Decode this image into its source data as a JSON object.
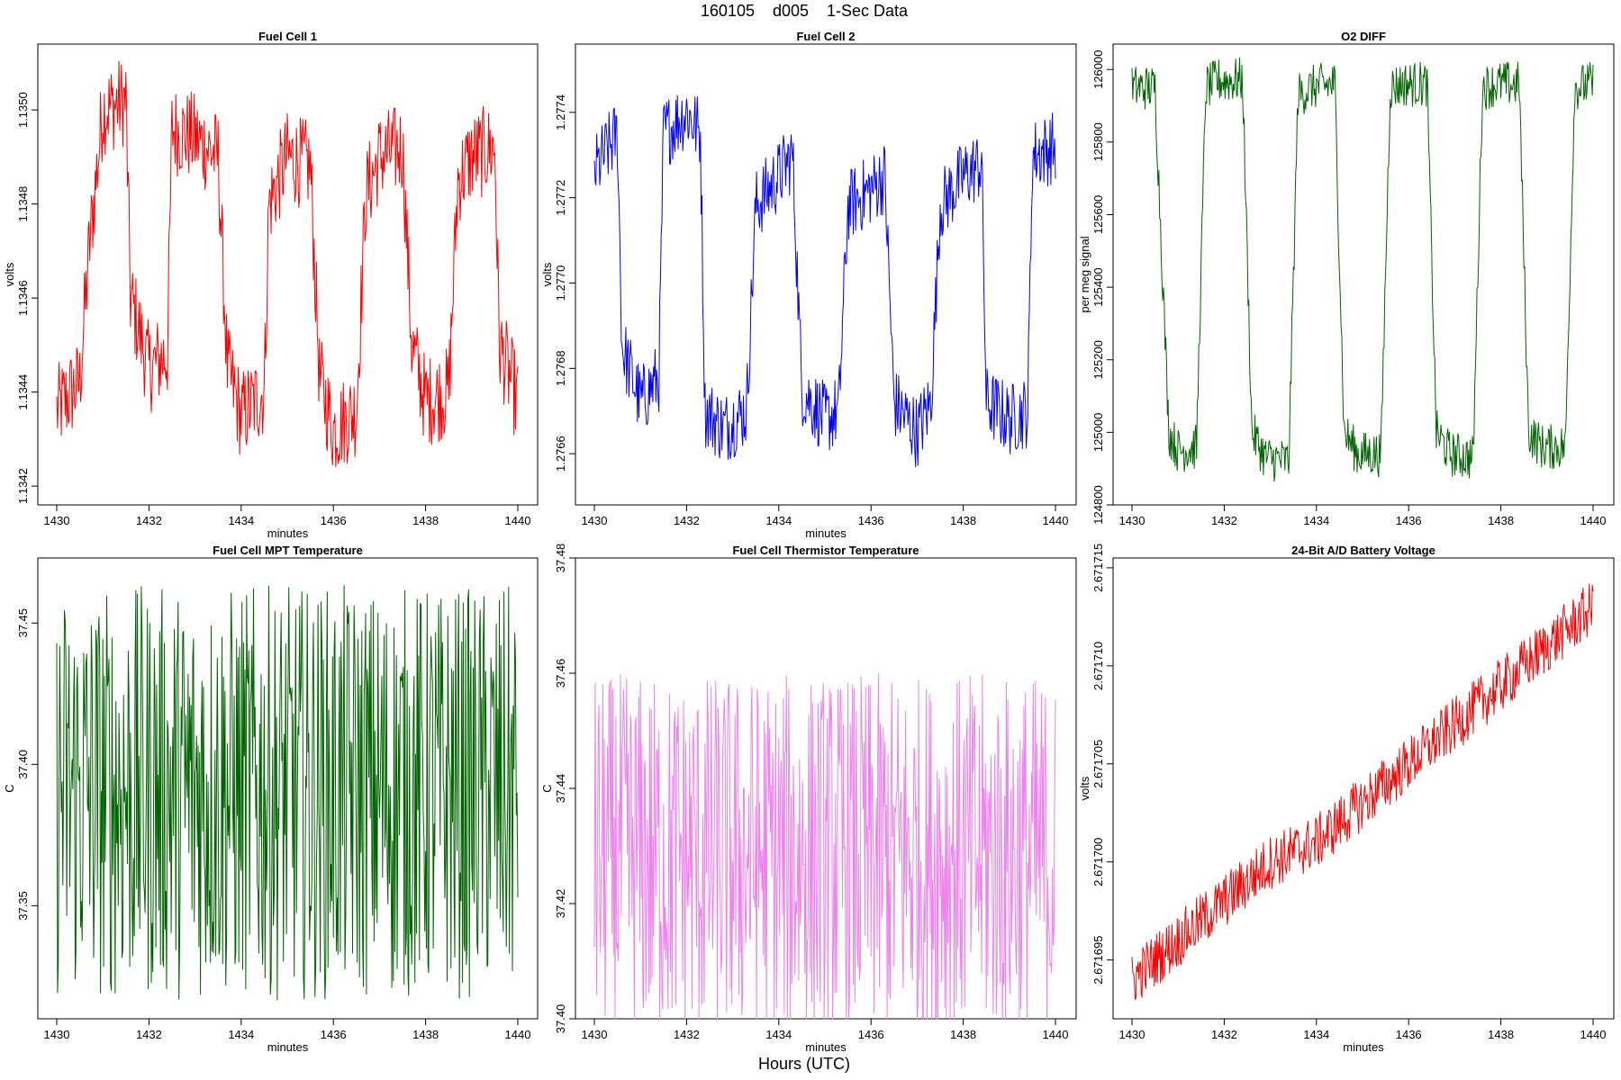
{
  "figure": {
    "title": "160105    d005    1-Sec Data",
    "xlabel": "Hours (UTC)"
  },
  "chart_data": [
    {
      "type": "line",
      "title": "Fuel Cell 1",
      "xlabel": "minutes",
      "ylabel": "volts",
      "color": "#ff0000",
      "xlim": [
        1430,
        1440
      ],
      "ylim": [
        1.13416,
        1.13514
      ],
      "xticks": [
        1430,
        1432,
        1434,
        1436,
        1438,
        1440
      ],
      "yticks": [
        1.1342,
        1.1344,
        1.1346,
        1.1348,
        1.135
      ],
      "ytick_labels": [
        "1.1342",
        "1.1344",
        "1.1346",
        "1.1348",
        "1.1350"
      ],
      "x": [
        1430,
        1430.5,
        1430.7,
        1431,
        1431.5,
        1431.6,
        1432,
        1432.4,
        1432.5,
        1433,
        1433.5,
        1433.7,
        1434,
        1434.5,
        1434.6,
        1435,
        1435.5,
        1435.7,
        1436,
        1436.5,
        1436.7,
        1437,
        1437.5,
        1437.7,
        1438,
        1438.5,
        1438.7,
        1439,
        1439.5,
        1439.6,
        1440
      ],
      "y": [
        1.13436,
        1.13442,
        1.1347,
        1.135,
        1.13502,
        1.1346,
        1.13445,
        1.13448,
        1.13496,
        1.13494,
        1.1349,
        1.13445,
        1.13435,
        1.1344,
        1.1348,
        1.1349,
        1.13488,
        1.13443,
        1.13432,
        1.13436,
        1.13482,
        1.1349,
        1.13492,
        1.1345,
        1.13438,
        1.1344,
        1.13485,
        1.1349,
        1.13492,
        1.1345,
        1.13438
      ]
    },
    {
      "type": "line",
      "title": "Fuel Cell 2",
      "xlabel": "minutes",
      "ylabel": "volts",
      "color": "#0000ff",
      "xlim": [
        1430,
        1440
      ],
      "ylim": [
        1.27648,
        1.27756
      ],
      "xticks": [
        1430,
        1432,
        1434,
        1436,
        1438,
        1440
      ],
      "yticks": [
        1.2766,
        1.2768,
        1.277,
        1.2772,
        1.2774
      ],
      "ytick_labels": [
        "1.2766",
        "1.2768",
        "1.2770",
        "1.2772",
        "1.2774"
      ],
      "x": [
        1430,
        1430.5,
        1430.6,
        1431,
        1431.4,
        1431.5,
        1432,
        1432.3,
        1432.4,
        1432.8,
        1433.3,
        1433.5,
        1434,
        1434.3,
        1434.5,
        1435,
        1435.3,
        1435.5,
        1436,
        1436.3,
        1436.5,
        1437,
        1437.3,
        1437.5,
        1438,
        1438.4,
        1438.5,
        1439,
        1439.4,
        1439.5,
        1440
      ],
      "y": [
        1.27726,
        1.27735,
        1.27685,
        1.27672,
        1.27678,
        1.27735,
        1.2774,
        1.27735,
        1.2767,
        1.27666,
        1.2767,
        1.27718,
        1.27725,
        1.2773,
        1.27675,
        1.27668,
        1.2767,
        1.27718,
        1.27722,
        1.27725,
        1.27672,
        1.27665,
        1.27672,
        1.27718,
        1.27725,
        1.27728,
        1.27672,
        1.27668,
        1.2767,
        1.2773,
        1.27732
      ]
    },
    {
      "type": "line",
      "title": "O2 DIFF",
      "xlabel": "",
      "ylabel": "per meg signal",
      "color": "#006400",
      "xlim": [
        1430,
        1440
      ],
      "ylim": [
        124800,
        126070
      ],
      "xticks": [
        1430,
        1432,
        1434,
        1436,
        1438,
        1440
      ],
      "yticks": [
        124800,
        125000,
        125200,
        125400,
        125600,
        125800,
        126000
      ],
      "ytick_labels": [
        "124800",
        "125000",
        "125200",
        "125400",
        "125600",
        "125800",
        "126000"
      ],
      "x": [
        1430,
        1430.5,
        1430.8,
        1431,
        1431.4,
        1431.6,
        1431.9,
        1432.4,
        1432.6,
        1432.9,
        1433.4,
        1433.6,
        1433.9,
        1434.4,
        1434.6,
        1434.9,
        1435.4,
        1435.6,
        1435.9,
        1436.4,
        1436.6,
        1436.9,
        1437.4,
        1437.6,
        1437.9,
        1438.4,
        1438.6,
        1438.9,
        1439.4,
        1439.6,
        1440
      ],
      "y": [
        125950,
        125950,
        125000,
        124950,
        124960,
        125950,
        125970,
        125970,
        125000,
        124930,
        124920,
        125930,
        125950,
        125960,
        125000,
        124940,
        124940,
        125950,
        125960,
        125960,
        125000,
        124940,
        124930,
        125950,
        125960,
        125960,
        125000,
        124960,
        124960,
        125950,
        125960
      ]
    },
    {
      "type": "line",
      "title": "Fuel Cell MPT Temperature",
      "xlabel": "minutes",
      "ylabel": "C",
      "color": "#006400",
      "xlim": [
        1430,
        1440
      ],
      "ylim": [
        37.31,
        37.473
      ],
      "xticks": [
        1430,
        1432,
        1434,
        1436,
        1438,
        1440
      ],
      "yticks": [
        37.35,
        37.4,
        37.45
      ],
      "ytick_labels": [
        "37.35",
        "37.40",
        "37.45"
      ],
      "x": [
        1430,
        1432.5,
        1434,
        1436,
        1437.7,
        1438,
        1440
      ],
      "y": [
        37.39,
        37.39,
        37.39,
        37.39,
        37.39,
        37.39,
        37.39
      ]
    },
    {
      "type": "line",
      "title": "Fuel Cell Thermistor Temperature",
      "xlabel": "minutes",
      "ylabel": "C",
      "color": "#ee82ee",
      "xlim": [
        1430,
        1440
      ],
      "ylim": [
        37.4,
        37.48
      ],
      "xticks": [
        1430,
        1432,
        1434,
        1436,
        1438,
        1440
      ],
      "yticks": [
        37.4,
        37.42,
        37.44,
        37.46,
        37.48
      ],
      "ytick_labels": [
        "37.40",
        "37.42",
        "37.44",
        "37.46",
        "37.48"
      ],
      "x": [
        1430,
        1433.2,
        1436,
        1440
      ],
      "y": [
        37.428,
        37.428,
        37.428,
        37.428
      ]
    },
    {
      "type": "line",
      "title": "24-Bit A/D Battery Voltage",
      "xlabel": "minutes",
      "ylabel": "volts",
      "color": "#ff0000",
      "xlim": [
        1430,
        1440
      ],
      "ylim": [
        2.671692,
        2.6717155
      ],
      "xticks": [
        1430,
        1432,
        1434,
        1436,
        1438,
        1440
      ],
      "yticks": [
        2.671695,
        2.6717,
        2.671705,
        2.67171,
        2.671715
      ],
      "ytick_labels": [
        "2.671695",
        "2.671700",
        "2.671705",
        "2.671710",
        "2.671715"
      ],
      "x": [
        1430,
        1431,
        1432,
        1433,
        1434,
        1435,
        1436,
        1437,
        1438,
        1439,
        1440
      ],
      "y": [
        2.671694,
        2.671696,
        2.671698,
        2.6717,
        2.671701,
        2.671703,
        2.671705,
        2.671707,
        2.671709,
        2.671711,
        2.671713
      ]
    }
  ]
}
